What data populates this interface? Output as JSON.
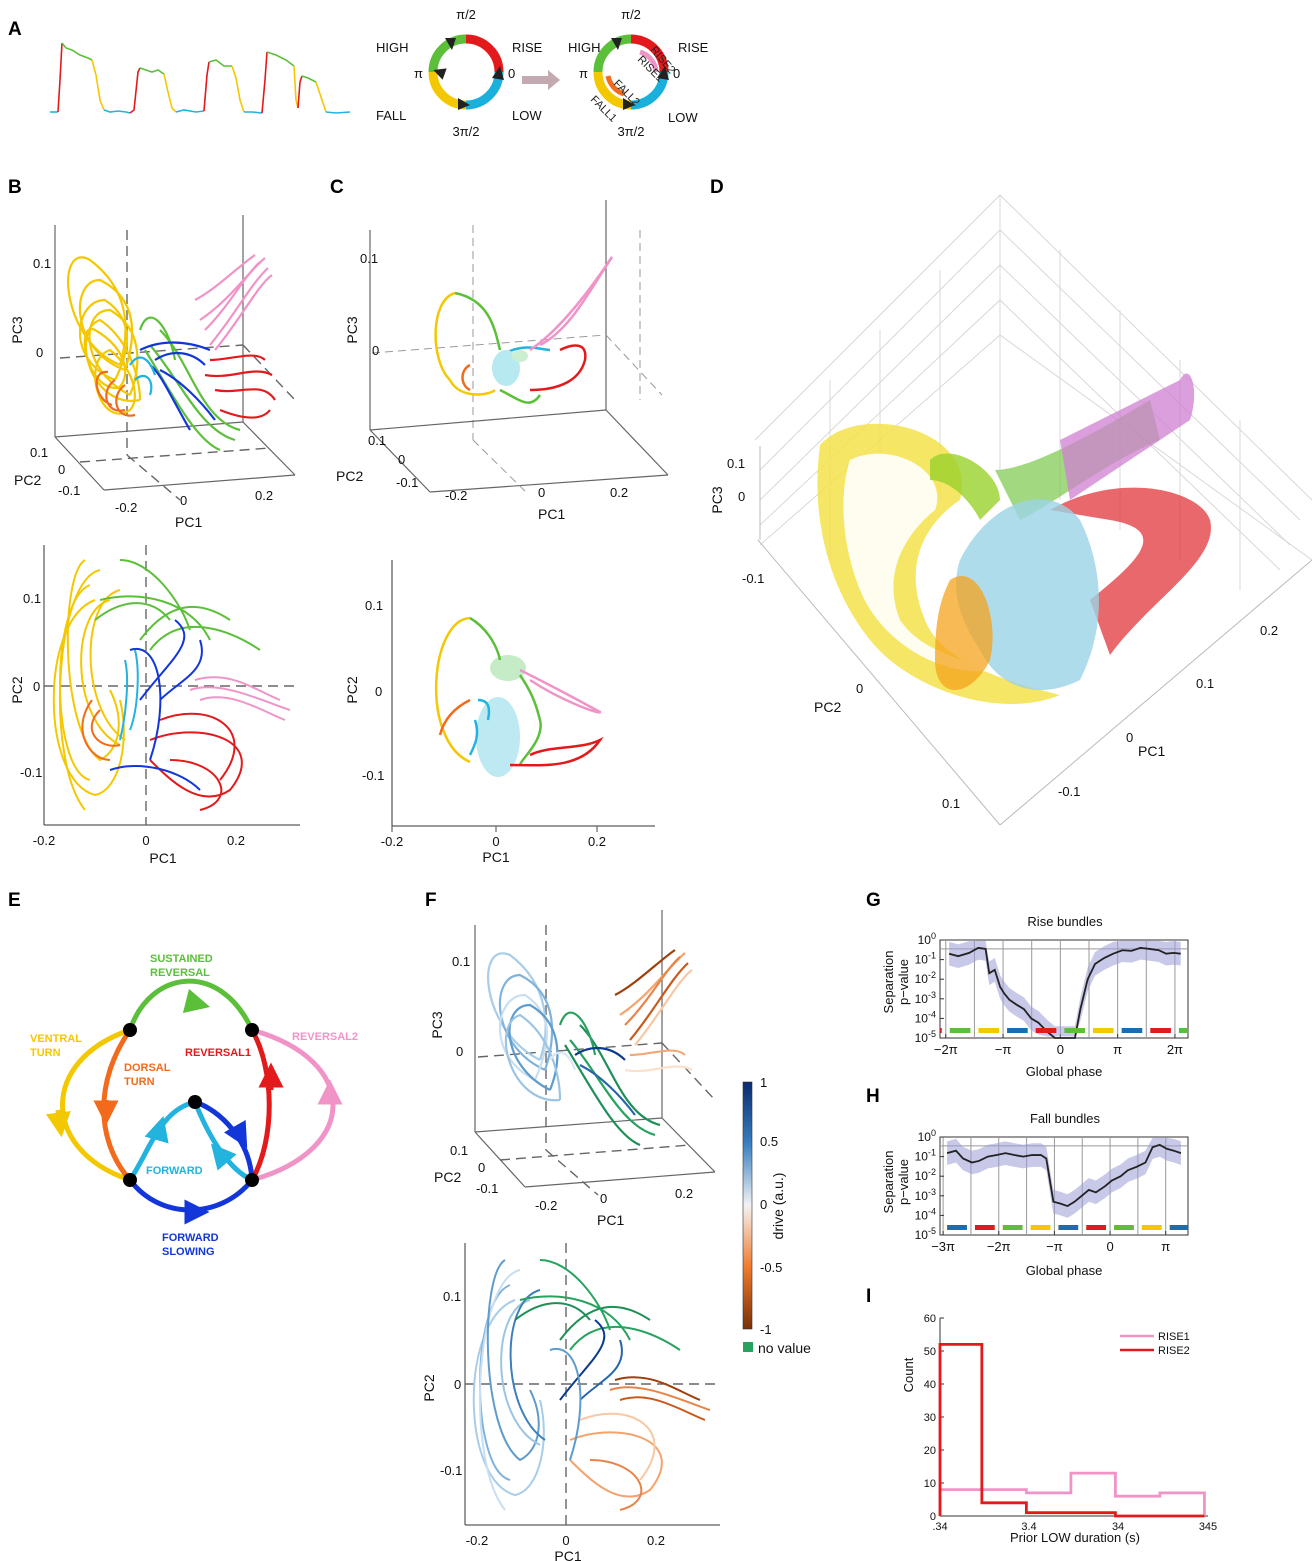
{
  "panels": {
    "A": "A",
    "B": "B",
    "C": "C",
    "D": "D",
    "E": "E",
    "F": "F",
    "G": "G",
    "H": "H",
    "I": "I"
  },
  "colors": {
    "rise": "#e31a1c",
    "high": "#5cbf3a",
    "fall": "#f4c800",
    "low": "#1ab0dc",
    "dorsal": "#f26b1d",
    "forward_slowing": "#1236d9",
    "reversal2": "#f094c8",
    "blue_trace": "#23b3df"
  },
  "phase_diagram": {
    "phase_top": "π/2",
    "phase_pi": "π",
    "phase_zero": "0",
    "phase_bottom": "3π/2",
    "high": "HIGH",
    "rise": "RISE",
    "fall": "FALL",
    "low": "LOW",
    "rise1": "RISE1",
    "rise2": "RISE2",
    "fall1": "FALL1",
    "fall2": "FALL2"
  },
  "axes": {
    "pc1": "PC1",
    "pc2": "PC2",
    "pc3": "PC3",
    "ticks_b3d_pc3": [
      "0.1",
      "0"
    ],
    "ticks_b3d_pc2": [
      "0.1",
      "0",
      "-0.1"
    ],
    "ticks_b3d_pc1": [
      "-0.2",
      "0",
      "0.2"
    ],
    "ticks_2d_pc2": [
      "0.1",
      "0",
      "-0.1"
    ],
    "ticks_2d_pc1": [
      "-0.2",
      "0",
      "0.2"
    ],
    "ticks_d_pc3": [
      "0.1",
      "0",
      "-0.1"
    ],
    "ticks_d_pc2": [
      "0",
      "0.1"
    ],
    "ticks_d_pc1": [
      "0.2",
      "0.1",
      "0",
      "-0.1"
    ]
  },
  "state_graph": {
    "sustained_reversal_1": "SUSTAINED",
    "sustained_reversal_2": "REVERSAL",
    "ventral_turn_1": "VENTRAL",
    "ventral_turn_2": "TURN",
    "dorsal_turn_1": "DORSAL",
    "dorsal_turn_2": "TURN",
    "reversal1": "REVERSAL1",
    "reversal2": "REVERSAL2",
    "forward": "FORWARD",
    "forward_slowing_1": "FORWARD",
    "forward_slowing_2": "SLOWING"
  },
  "colorbar": {
    "label": "drive (a.u.)",
    "ticks": [
      "1",
      "0.5",
      "0",
      "-0.5",
      "-1"
    ],
    "no_value": "no value",
    "no_value_color": "#27a35f"
  },
  "chart_data": [
    {
      "panel": "G",
      "type": "line",
      "title": "Rise bundles",
      "xlabel": "Global phase",
      "ylabel": "Separation p-value",
      "ylabel_line1": "Separation",
      "ylabel_line2": "p−value",
      "yscale": "log",
      "ylim": [
        1e-05,
        1
      ],
      "yticks": [
        "10^0",
        "10^-1",
        "10^-2",
        "10^-3",
        "10^-4",
        "10^-5"
      ],
      "xticks": [
        "−2π",
        "−π",
        "0",
        "π",
        "2π"
      ],
      "x": [
        -6.1,
        -5.6,
        -5.0,
        -4.5,
        -4.1,
        -3.9,
        -3.6,
        -3.3,
        -3.1,
        -2.8,
        -2.4,
        -2.0,
        -1.6,
        -1.2,
        -0.7,
        -0.3,
        0.3,
        0.8,
        1.1,
        1.5,
        1.9,
        2.4,
        2.9,
        3.4,
        3.9,
        4.4,
        4.9,
        5.4,
        5.8,
        6.2,
        6.6
      ],
      "values": [
        0.2,
        0.15,
        0.22,
        0.4,
        0.35,
        0.02,
        0.03,
        0.004,
        0.002,
        0.0009,
        0.0005,
        0.0003,
        0.0001,
        6e-05,
        2e-05,
        1e-05,
        1e-05,
        1e-05,
        0.0003,
        0.01,
        0.06,
        0.12,
        0.2,
        0.3,
        0.28,
        0.4,
        0.35,
        0.3,
        0.2,
        0.22,
        0.2
      ]
    },
    {
      "panel": "H",
      "type": "line",
      "title": "Fall bundles",
      "xlabel": "Global phase",
      "ylabel": "Separation p-value",
      "ylabel_line1": "Separation",
      "ylabel_line2": "p−value",
      "yscale": "log",
      "ylim": [
        1e-05,
        1
      ],
      "yticks": [
        "10^0",
        "10^-1",
        "10^-2",
        "10^-3",
        "10^-4",
        "10^-5"
      ],
      "xticks": [
        "−3π",
        "−2π",
        "−π",
        "0",
        "π"
      ],
      "x": [
        -9.2,
        -8.7,
        -8.3,
        -7.8,
        -7.4,
        -6.9,
        -6.4,
        -5.9,
        -5.4,
        -4.9,
        -4.4,
        -3.9,
        -3.6,
        -3.2,
        -2.8,
        -2.4,
        -2.0,
        -1.6,
        -1.2,
        -0.8,
        -0.3,
        0.1,
        0.6,
        1.0,
        1.5,
        2.0,
        2.4,
        2.8,
        3.2,
        3.6,
        4.0
      ],
      "values": [
        0.15,
        0.2,
        0.08,
        0.05,
        0.06,
        0.1,
        0.12,
        0.15,
        0.12,
        0.1,
        0.12,
        0.12,
        0.08,
        0.0005,
        0.0004,
        0.0003,
        0.0005,
        0.001,
        0.002,
        0.0015,
        0.003,
        0.006,
        0.01,
        0.02,
        0.03,
        0.05,
        0.3,
        0.4,
        0.25,
        0.2,
        0.15
      ]
    },
    {
      "panel": "I",
      "type": "line",
      "xlabel": "Prior LOW duration (s)",
      "ylabel": "Count",
      "xticks": [
        ".34",
        "3.4",
        "34",
        "345"
      ],
      "yticks": [
        "0",
        "10",
        "20",
        "30",
        "40",
        "50",
        "60"
      ],
      "ylim": [
        0,
        60
      ],
      "series": [
        {
          "name": "RISE1",
          "bins_log10": [
            -0.47,
            0.0,
            0.5,
            1.0,
            1.5,
            2.0,
            2.5
          ],
          "values": [
            8,
            8,
            7,
            13,
            6,
            7,
            0
          ]
        },
        {
          "name": "RISE2",
          "bins_log10": [
            -0.47,
            0.0,
            0.5,
            1.0,
            1.5,
            2.0,
            2.5
          ],
          "values": [
            52,
            4,
            1,
            1,
            0,
            0,
            0
          ]
        }
      ]
    }
  ]
}
